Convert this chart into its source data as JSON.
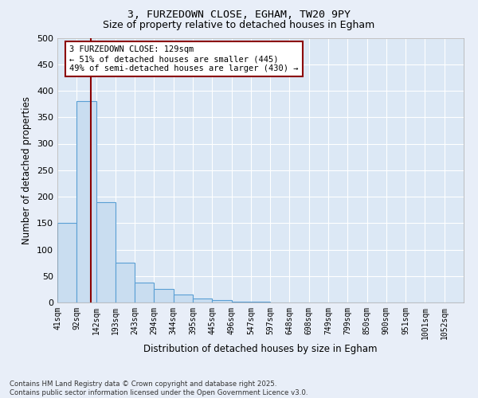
{
  "title_line1": "3, FURZEDOWN CLOSE, EGHAM, TW20 9PY",
  "title_line2": "Size of property relative to detached houses in Egham",
  "xlabel": "Distribution of detached houses by size in Egham",
  "ylabel": "Number of detached properties",
  "footer_line1": "Contains HM Land Registry data © Crown copyright and database right 2025.",
  "footer_line2": "Contains public sector information licensed under the Open Government Licence v3.0.",
  "annotation_line1": "3 FURZEDOWN CLOSE: 129sqm",
  "annotation_line2": "← 51% of detached houses are smaller (445)",
  "annotation_line3": "49% of semi-detached houses are larger (430) →",
  "bin_labels": [
    "41sqm",
    "92sqm",
    "142sqm",
    "193sqm",
    "243sqm",
    "294sqm",
    "344sqm",
    "395sqm",
    "445sqm",
    "496sqm",
    "547sqm",
    "597sqm",
    "648sqm",
    "698sqm",
    "749sqm",
    "799sqm",
    "850sqm",
    "900sqm",
    "951sqm",
    "1001sqm",
    "1052sqm"
  ],
  "bar_heights": [
    150,
    380,
    190,
    75,
    38,
    25,
    15,
    8,
    5,
    2,
    1,
    0,
    0,
    0,
    0,
    0,
    0,
    0,
    0,
    0,
    0
  ],
  "bar_color": "#c9ddf0",
  "bar_edge_color": "#5a9fd4",
  "vline_x": 2,
  "vline_color": "#8b0000",
  "background_color": "#e8eef8",
  "plot_bg_color": "#dce8f5",
  "grid_color": "#ffffff",
  "ylim": [
    0,
    500
  ],
  "yticks": [
    0,
    50,
    100,
    150,
    200,
    250,
    300,
    350,
    400,
    450,
    500
  ],
  "title_fontsize": 9,
  "subtitle_fontsize": 9
}
